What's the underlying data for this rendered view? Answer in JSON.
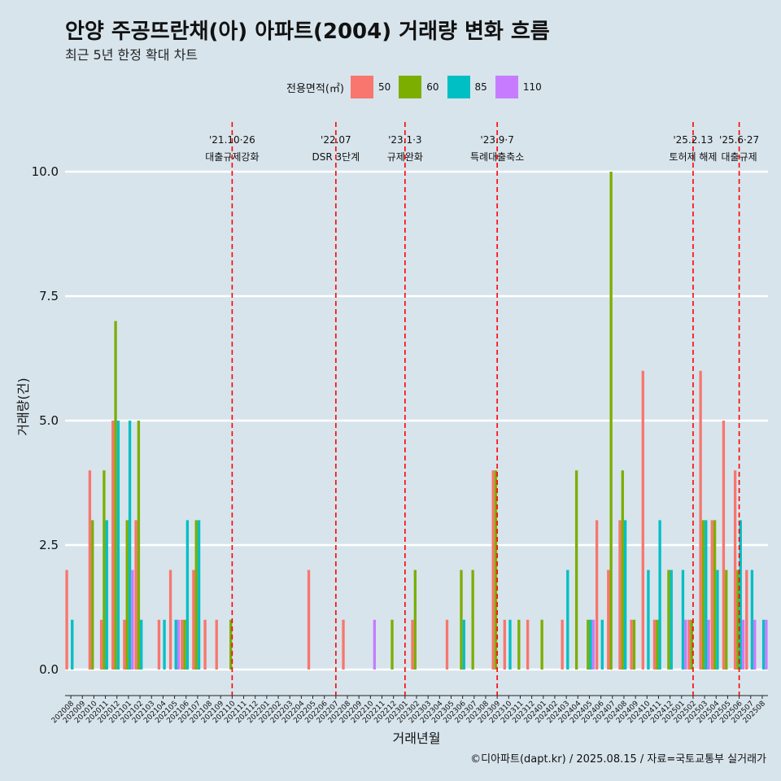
{
  "header": {
    "title": "안양 주공뜨란채(아) 아파트(2004) 거래량 변화 흐름",
    "subtitle": "최근 5년 한정 확대 차트"
  },
  "legend": {
    "title": "전용면적(㎡)",
    "items": [
      {
        "label": "50",
        "color": "#F8766D"
      },
      {
        "label": "60",
        "color": "#7CAE00"
      },
      {
        "label": "85",
        "color": "#00BFC4"
      },
      {
        "label": "110",
        "color": "#C77CFF"
      }
    ]
  },
  "caption": "©디아파트(dapt.kr) / 2025.08.15 / 자료=국토교통부 실거래가",
  "chart_data": {
    "type": "bar",
    "xlabel": "거래년월",
    "ylabel": "거래량(건)",
    "ylim": [
      -0.4,
      11.2
    ],
    "yticks": [
      "0.0",
      "2.5",
      "5.0",
      "7.5",
      "10.0"
    ],
    "grid": true,
    "legend_position": "top",
    "categories": [
      "202008",
      "202009",
      "202010",
      "202011",
      "202012",
      "202101",
      "202102",
      "202103",
      "202104",
      "202105",
      "202106",
      "202107",
      "202108",
      "202109",
      "202110",
      "202111",
      "202112",
      "202201",
      "202202",
      "202203",
      "202204",
      "202205",
      "202206",
      "202207",
      "202208",
      "202209",
      "202210",
      "202211",
      "202212",
      "202301",
      "202302",
      "202303",
      "202304",
      "202305",
      "202306",
      "202307",
      "202308",
      "202309",
      "202310",
      "202311",
      "202312",
      "202401",
      "202402",
      "202403",
      "202404",
      "202405",
      "202406",
      "202407",
      "202408",
      "202409",
      "202410",
      "202411",
      "202412",
      "202501",
      "202502",
      "202503",
      "202504",
      "202505",
      "202506",
      "202507",
      "202508"
    ],
    "series": [
      {
        "name": "50",
        "color": "#F8766D",
        "values": {
          "202008": 2,
          "202010": 4,
          "202011": 1,
          "202012": 5,
          "202101": 1,
          "202102": 3,
          "202104": 1,
          "202105": 2,
          "202106": 1,
          "202107": 2,
          "202108": 1,
          "202109": 1,
          "202205": 2,
          "202208": 1,
          "202302": 1,
          "202305": 1,
          "202309": 4,
          "202310": 1,
          "202312": 1,
          "202403": 1,
          "202406": 3,
          "202407": 2,
          "202408": 3,
          "202409": 1,
          "202410": 6,
          "202411": 1,
          "202502": 1,
          "202503": 6,
          "202504": 3,
          "202505": 5,
          "202506": 4,
          "202507": 2
        }
      },
      {
        "name": "60",
        "color": "#7CAE00",
        "values": {
          "202010": 3,
          "202011": 4,
          "202012": 7,
          "202101": 3,
          "202102": 5,
          "202106": 1,
          "202107": 3,
          "202110": 1,
          "202212": 1,
          "202302": 2,
          "202306": 2,
          "202307": 2,
          "202309": 4,
          "202311": 1,
          "202401": 1,
          "202404": 4,
          "202405": 1,
          "202407": 10,
          "202408": 4,
          "202409": 1,
          "202411": 1,
          "202412": 2,
          "202502": 1,
          "202503": 3,
          "202504": 3,
          "202505": 2,
          "202506": 2
        }
      },
      {
        "name": "85",
        "color": "#00BFC4",
        "values": {
          "202008": 1,
          "202011": 3,
          "202012": 5,
          "202101": 5,
          "202102": 1,
          "202104": 1,
          "202105": 1,
          "202106": 3,
          "202107": 3,
          "202306": 1,
          "202310": 1,
          "202403": 2,
          "202405": 1,
          "202406": 1,
          "202408": 3,
          "202410": 2,
          "202411": 3,
          "202412": 2,
          "202501": 2,
          "202503": 3,
          "202504": 2,
          "202506": 3,
          "202507": 2,
          "202508": 1
        }
      },
      {
        "name": "110",
        "color": "#C77CFF",
        "values": {
          "202101": 2,
          "202105": 1,
          "202210": 1,
          "202405": 1,
          "202501": 1,
          "202503": 1,
          "202506": 1,
          "202507": 1,
          "202508": 1
        }
      }
    ],
    "annotations": [
      {
        "month": "202110",
        "date": "'21.10·26",
        "label": "대출규제강화"
      },
      {
        "month": "202207",
        "date": "'22.07",
        "label": "DSR 3단계"
      },
      {
        "month": "202301",
        "date": "'23.1·3",
        "label": "규제완화"
      },
      {
        "month": "202309",
        "date": "'23.9·7",
        "label": "특례대출축소"
      },
      {
        "month": "202502",
        "date": "'25.2.13",
        "label": "토허제 해제"
      },
      {
        "month": "202506",
        "date": "'25.6·27",
        "label": "대출규제"
      }
    ]
  }
}
